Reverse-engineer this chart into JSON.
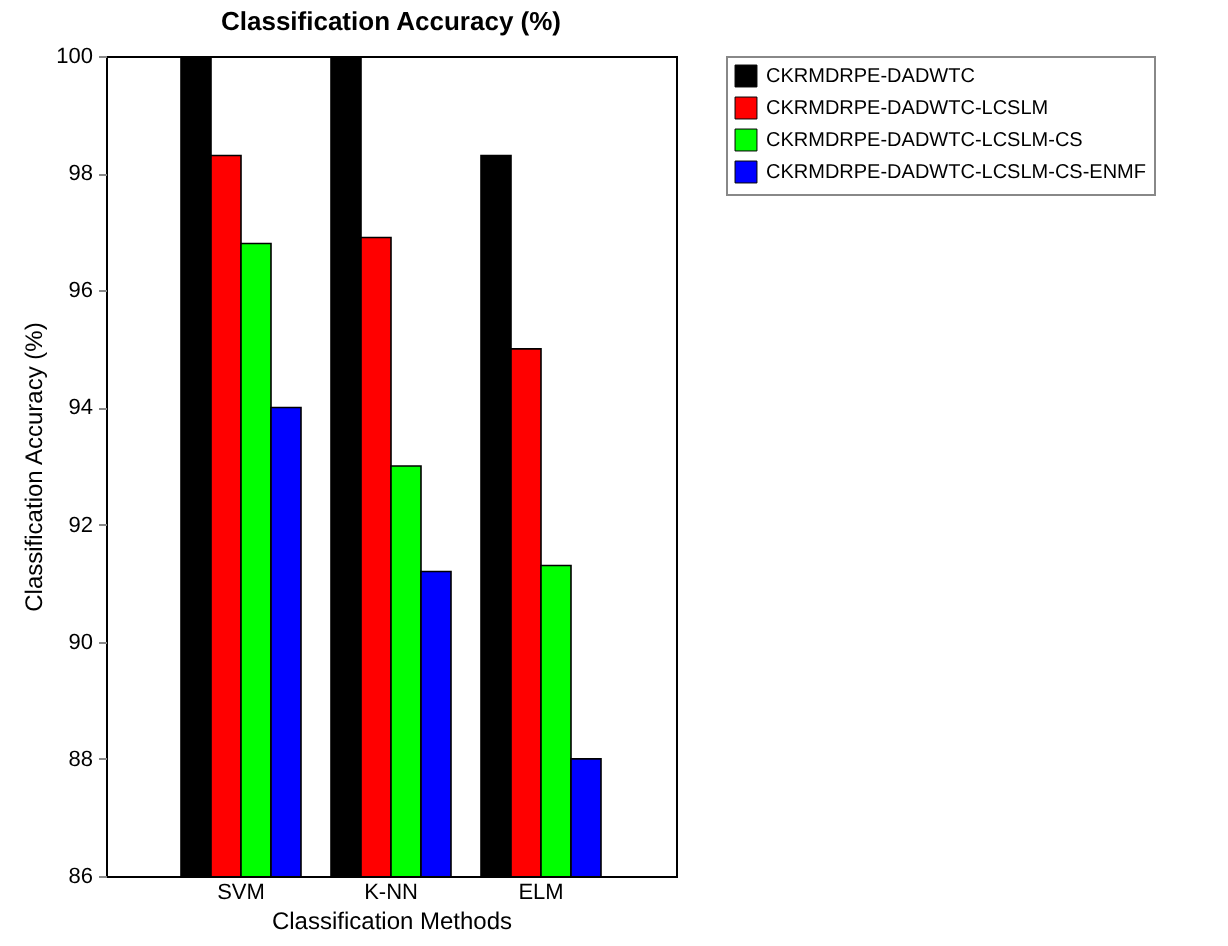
{
  "chart_data": {
    "type": "bar",
    "title": "Classification Accuracy (%)",
    "xlabel": "Classification Methods",
    "ylabel": "Classification Accuracy (%)",
    "categories": [
      "SVM",
      "K-NN",
      "ELM"
    ],
    "series": [
      {
        "name": "CKRMDRPE-DADWTC",
        "color": "#000000",
        "values": [
          100,
          100,
          98.3
        ]
      },
      {
        "name": "CKRMDRPE-DADWTC-LCSLM",
        "color": "#ff0000",
        "values": [
          98.3,
          96.9,
          95.0
        ]
      },
      {
        "name": "CKRMDRPE-DADWTC-LCSLM-CS",
        "color": "#00ff00",
        "values": [
          96.8,
          93.0,
          91.3
        ]
      },
      {
        "name": "CKRMDRPE-DADWTC-LCSLM-CS-ENMF",
        "color": "#0000ff",
        "values": [
          94.0,
          91.2,
          88.0
        ]
      }
    ],
    "ylim": [
      86,
      100
    ],
    "yticks": [
      86,
      88,
      90,
      92,
      94,
      96,
      98,
      100
    ],
    "grid": false,
    "legend": "right"
  }
}
